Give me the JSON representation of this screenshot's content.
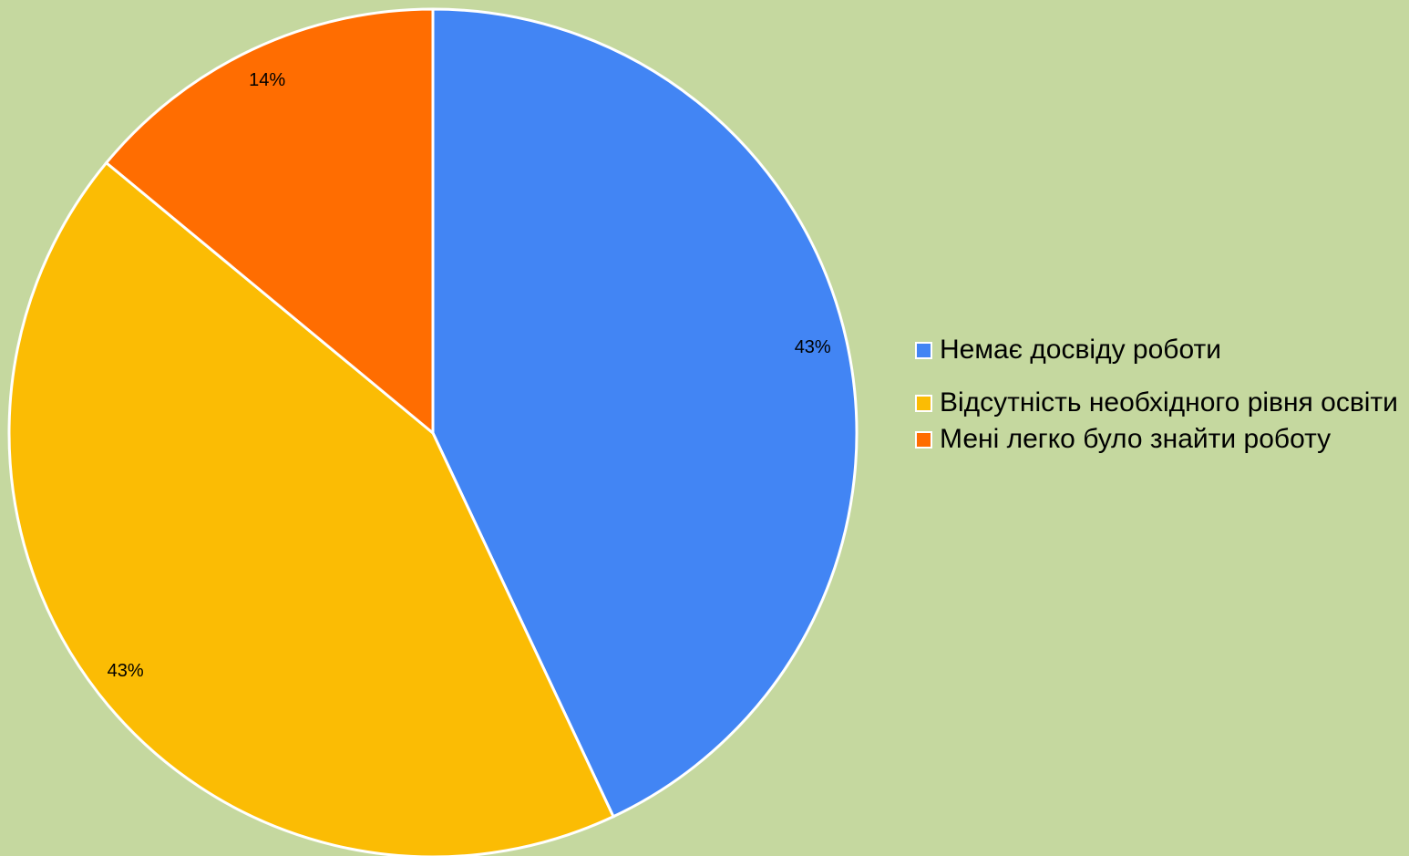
{
  "chart_data": {
    "type": "pie",
    "categories": [
      "Немає досвіду роботи",
      "Відсутність необхідного рівня освіти",
      "Мені легко було знайти роботу"
    ],
    "values": [
      43,
      43,
      14
    ],
    "value_labels": [
      "43%",
      "43%",
      "14%"
    ],
    "colors": [
      "#4285f4",
      "#fbbc04",
      "#ff6d01"
    ],
    "legend": "right"
  }
}
